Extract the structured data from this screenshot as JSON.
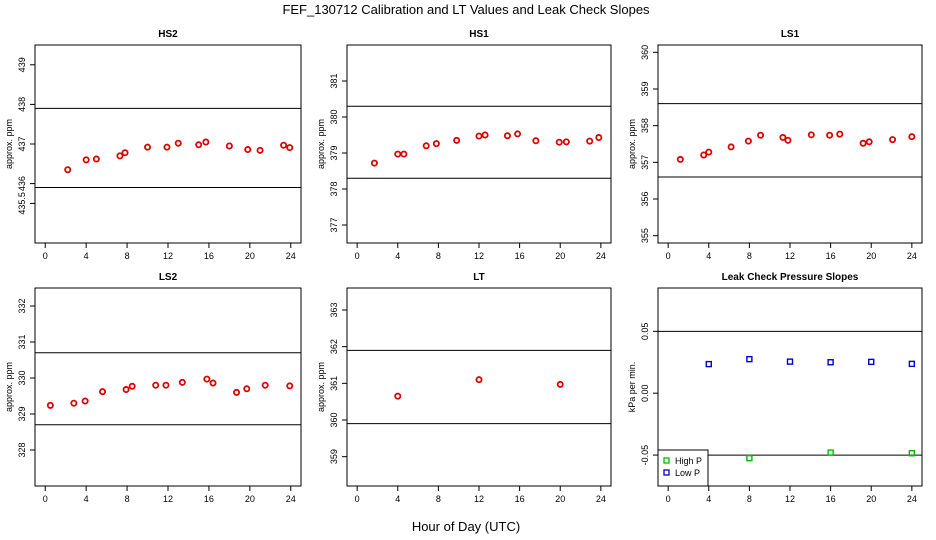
{
  "title": "FEF_130712  Calibration and LT Values and Leak Check Slopes",
  "xlabel": "Hour of Day (UTC)",
  "chart_data": [
    {
      "type": "scatter",
      "title": "HS2",
      "ylabel": "approx. ppm",
      "xlim": [
        -1,
        25
      ],
      "ylim": [
        434.5,
        439.5
      ],
      "xticks": [
        "0",
        "4",
        "8",
        "12",
        "16",
        "20",
        "24"
      ],
      "yticks": [
        "435.5",
        "436",
        "437",
        "438",
        "439"
      ],
      "ytick_values": [
        435.5,
        436,
        437,
        438,
        439
      ],
      "hlines": [
        437.9,
        435.9
      ],
      "color": "#dd0000",
      "marker": "circle",
      "series": [
        {
          "x": [
            2.2,
            4.0,
            5.0,
            7.3,
            7.8,
            10.0,
            11.9,
            13.0,
            15.0,
            15.7,
            18.0,
            19.8,
            21.0,
            23.3,
            23.9
          ],
          "y": [
            436.35,
            436.6,
            436.62,
            436.7,
            436.78,
            436.92,
            436.92,
            437.02,
            436.98,
            437.05,
            436.95,
            436.86,
            436.84,
            436.97,
            436.91
          ]
        }
      ]
    },
    {
      "type": "scatter",
      "title": "HS1",
      "ylabel": "approx. ppm",
      "xlim": [
        -1,
        25
      ],
      "ylim": [
        376.5,
        382.0
      ],
      "xticks": [
        "0",
        "4",
        "8",
        "12",
        "16",
        "20",
        "24"
      ],
      "yticks": [
        "377",
        "378",
        "379",
        "380",
        "381"
      ],
      "ytick_values": [
        377,
        378,
        379,
        380,
        381
      ],
      "hlines": [
        380.3,
        378.3
      ],
      "color": "#dd0000",
      "marker": "circle",
      "series": [
        {
          "x": [
            1.7,
            4.0,
            4.6,
            6.8,
            7.8,
            9.8,
            12.0,
            12.6,
            14.8,
            15.8,
            17.6,
            19.9,
            20.6,
            22.9,
            23.8
          ],
          "y": [
            378.72,
            378.97,
            378.97,
            379.2,
            379.26,
            379.35,
            379.47,
            379.5,
            379.48,
            379.53,
            379.34,
            379.3,
            379.31,
            379.33,
            379.43
          ]
        }
      ]
    },
    {
      "type": "scatter",
      "title": "LS1",
      "ylabel": "approx. ppm",
      "xlim": [
        -1,
        25
      ],
      "ylim": [
        354.8,
        360.2
      ],
      "xticks": [
        "0",
        "4",
        "8",
        "12",
        "16",
        "20",
        "24"
      ],
      "yticks": [
        "355",
        "356",
        "357",
        "358",
        "359",
        "360"
      ],
      "ytick_values": [
        355,
        356,
        357,
        358,
        359,
        360
      ],
      "hlines": [
        358.6,
        356.6
      ],
      "color": "#dd0000",
      "marker": "circle",
      "series": [
        {
          "x": [
            1.2,
            3.5,
            4.0,
            6.2,
            7.9,
            9.1,
            11.3,
            11.8,
            14.1,
            15.9,
            16.9,
            19.2,
            19.8,
            22.1,
            24.0
          ],
          "y": [
            357.08,
            357.2,
            357.28,
            357.42,
            357.58,
            357.74,
            357.68,
            357.6,
            357.75,
            357.74,
            357.77,
            357.52,
            357.56,
            357.62,
            357.7
          ]
        }
      ]
    },
    {
      "type": "scatter",
      "title": "LS2",
      "ylabel": "approx. ppm",
      "xlim": [
        -1,
        25
      ],
      "ylim": [
        327.0,
        332.5
      ],
      "xticks": [
        "0",
        "4",
        "8",
        "12",
        "16",
        "20",
        "24"
      ],
      "yticks": [
        "328",
        "329",
        "330",
        "331",
        "332"
      ],
      "ytick_values": [
        328,
        329,
        330,
        331,
        332
      ],
      "hlines": [
        330.7,
        328.7
      ],
      "color": "#dd0000",
      "marker": "circle",
      "series": [
        {
          "x": [
            0.5,
            2.8,
            3.9,
            5.6,
            7.9,
            8.5,
            10.8,
            11.8,
            13.4,
            15.8,
            16.4,
            18.7,
            19.7,
            21.5,
            23.9
          ],
          "y": [
            329.24,
            329.3,
            329.36,
            329.62,
            329.68,
            329.77,
            329.8,
            329.8,
            329.88,
            329.97,
            329.86,
            329.6,
            329.7,
            329.8,
            329.78
          ]
        }
      ]
    },
    {
      "type": "scatter",
      "title": "LT",
      "ylabel": "approx. ppm",
      "xlim": [
        -1,
        25
      ],
      "ylim": [
        358.2,
        363.6
      ],
      "xticks": [
        "0",
        "4",
        "8",
        "12",
        "16",
        "20",
        "24"
      ],
      "yticks": [
        "359",
        "360",
        "361",
        "362",
        "363"
      ],
      "ytick_values": [
        359,
        360,
        361,
        362,
        363
      ],
      "hlines": [
        361.9,
        359.9
      ],
      "color": "#dd0000",
      "marker": "circle",
      "series": [
        {
          "x": [
            4.0,
            12.0,
            20.0
          ],
          "y": [
            360.65,
            361.1,
            360.97
          ]
        }
      ]
    },
    {
      "type": "scatter",
      "title": "Leak Check Pressure Slopes",
      "ylabel": "kPa per min.",
      "xlim": [
        -1,
        25
      ],
      "ylim": [
        -0.075,
        0.085
      ],
      "xticks": [
        "0",
        "4",
        "8",
        "12",
        "16",
        "20",
        "24"
      ],
      "yticks": [
        "-0.05",
        "0.00",
        "0.05"
      ],
      "ytick_values": [
        -0.05,
        0.0,
        0.05
      ],
      "hlines": [
        0.05,
        -0.05
      ],
      "marker": "square",
      "legend": {
        "position": "bottom-left"
      },
      "series": [
        {
          "name": "High P",
          "color": "#00bb00",
          "x": [
            8.0,
            16.0,
            24.0
          ],
          "y": [
            -0.0525,
            -0.048,
            -0.0485
          ]
        },
        {
          "name": "Low P",
          "color": "#0000cc",
          "x": [
            4.0,
            8.0,
            12.0,
            16.0,
            20.0,
            24.0
          ],
          "y": [
            0.0235,
            0.0275,
            0.0255,
            0.025,
            0.0253,
            0.0237
          ]
        }
      ]
    }
  ]
}
